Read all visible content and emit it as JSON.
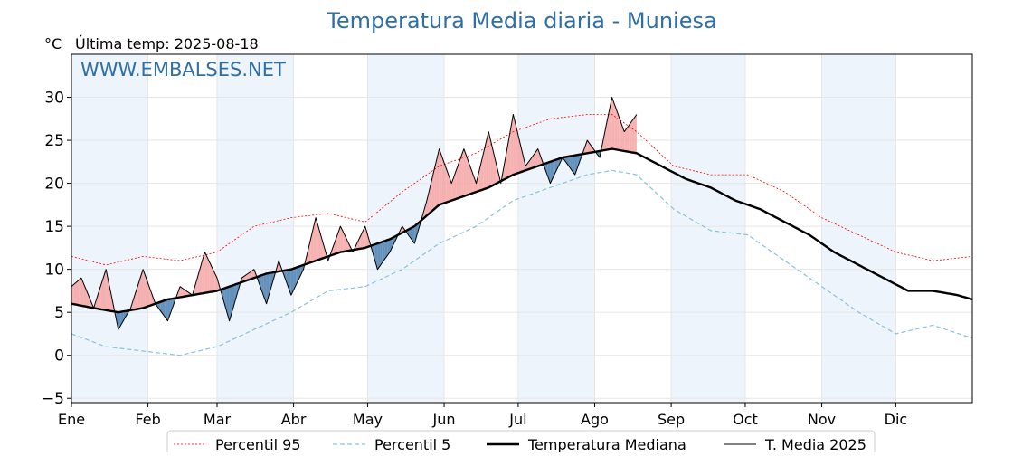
{
  "chart_data": {
    "type": "line",
    "title": "Temperatura Media diaria - Muniesa",
    "unit_label": "°C",
    "last_temp_label": "Última temp: 2025-08-18",
    "watermark": "WWW.EMBALSES.NET",
    "ylim": [
      -5.5,
      35
    ],
    "y_ticks": [
      -5,
      0,
      5,
      10,
      15,
      20,
      25,
      30
    ],
    "x_range_days": [
      1,
      366
    ],
    "month_ticks": [
      {
        "label": "Ene",
        "day": 1
      },
      {
        "label": "Feb",
        "day": 32
      },
      {
        "label": "Mar",
        "day": 60
      },
      {
        "label": "Abr",
        "day": 91
      },
      {
        "label": "May",
        "day": 121
      },
      {
        "label": "Jun",
        "day": 152
      },
      {
        "label": "Jul",
        "day": 182
      },
      {
        "label": "Ago",
        "day": 213
      },
      {
        "label": "Sep",
        "day": 244
      },
      {
        "label": "Oct",
        "day": 274
      },
      {
        "label": "Nov",
        "day": 305
      },
      {
        "label": "Dic",
        "day": 335
      }
    ],
    "grid": true,
    "legend": "bottom-center",
    "colors": {
      "p95": "#ff0000",
      "p5": "#87c4dc",
      "median": "#000000",
      "current": "#000000",
      "above": "#f4a3a3",
      "below": "#4a7fb0",
      "band": "#eef4fb",
      "title": "#2f6fa5"
    },
    "x_unit": "day of year",
    "series": [
      {
        "name": "Percentil 95",
        "key": "p95",
        "x": [
          1,
          15,
          30,
          45,
          60,
          75,
          90,
          105,
          120,
          135,
          150,
          165,
          180,
          195,
          210,
          220,
          230,
          245,
          260,
          275,
          290,
          305,
          320,
          335,
          350,
          366
        ],
        "y": [
          11.5,
          10.5,
          11.5,
          11,
          12,
          15,
          16,
          16.5,
          15.5,
          19,
          22,
          23.5,
          26,
          27.5,
          28,
          28,
          26,
          22,
          21,
          21,
          19,
          16,
          14,
          12,
          11,
          11.5
        ]
      },
      {
        "name": "Percentil 5",
        "key": "p5",
        "x": [
          1,
          15,
          30,
          45,
          60,
          75,
          90,
          105,
          120,
          135,
          150,
          165,
          180,
          195,
          210,
          220,
          230,
          245,
          260,
          275,
          290,
          305,
          320,
          335,
          350,
          366
        ],
        "y": [
          2.5,
          1,
          0.5,
          0,
          1,
          3,
          5,
          7.5,
          8,
          10,
          13,
          15,
          18,
          19.5,
          21,
          21.5,
          21,
          17,
          14.5,
          14,
          11,
          8,
          5,
          2.5,
          3.5,
          2
        ]
      },
      {
        "name": "Temperatura Mediana",
        "key": "median",
        "x": [
          1,
          10,
          20,
          30,
          40,
          50,
          60,
          70,
          80,
          90,
          100,
          110,
          120,
          130,
          140,
          150,
          160,
          170,
          180,
          190,
          200,
          210,
          220,
          230,
          240,
          250,
          260,
          270,
          280,
          290,
          300,
          310,
          320,
          330,
          340,
          350,
          360,
          366
        ],
        "y": [
          6,
          5.5,
          5,
          5.5,
          6.5,
          7,
          7.5,
          8.5,
          9.5,
          10,
          11,
          12,
          12.5,
          13.5,
          15,
          17.5,
          18.5,
          19.5,
          21,
          22,
          23,
          23.5,
          24,
          23.5,
          22,
          20.5,
          19.5,
          18,
          17,
          15.5,
          14,
          12,
          10.5,
          9,
          7.5,
          7.5,
          7,
          6.5
        ]
      },
      {
        "name": "T. Media 2025",
        "key": "current",
        "x": [
          1,
          5,
          10,
          15,
          20,
          25,
          30,
          35,
          40,
          45,
          50,
          55,
          60,
          65,
          70,
          75,
          80,
          85,
          90,
          95,
          100,
          105,
          110,
          115,
          120,
          125,
          130,
          135,
          140,
          145,
          150,
          155,
          160,
          165,
          170,
          175,
          180,
          185,
          190,
          195,
          200,
          205,
          210,
          215,
          220,
          225,
          230
        ],
        "y": [
          8,
          9,
          5.5,
          10,
          3,
          5.5,
          10,
          6,
          4,
          8,
          7,
          12,
          9,
          4,
          9,
          10,
          6,
          11,
          7,
          10,
          16,
          11,
          15,
          12,
          15,
          10,
          12,
          15,
          13,
          18,
          24,
          20,
          24,
          20,
          26,
          20,
          28,
          22,
          24,
          20,
          23,
          21,
          25,
          23,
          30,
          26,
          28
        ]
      }
    ]
  }
}
